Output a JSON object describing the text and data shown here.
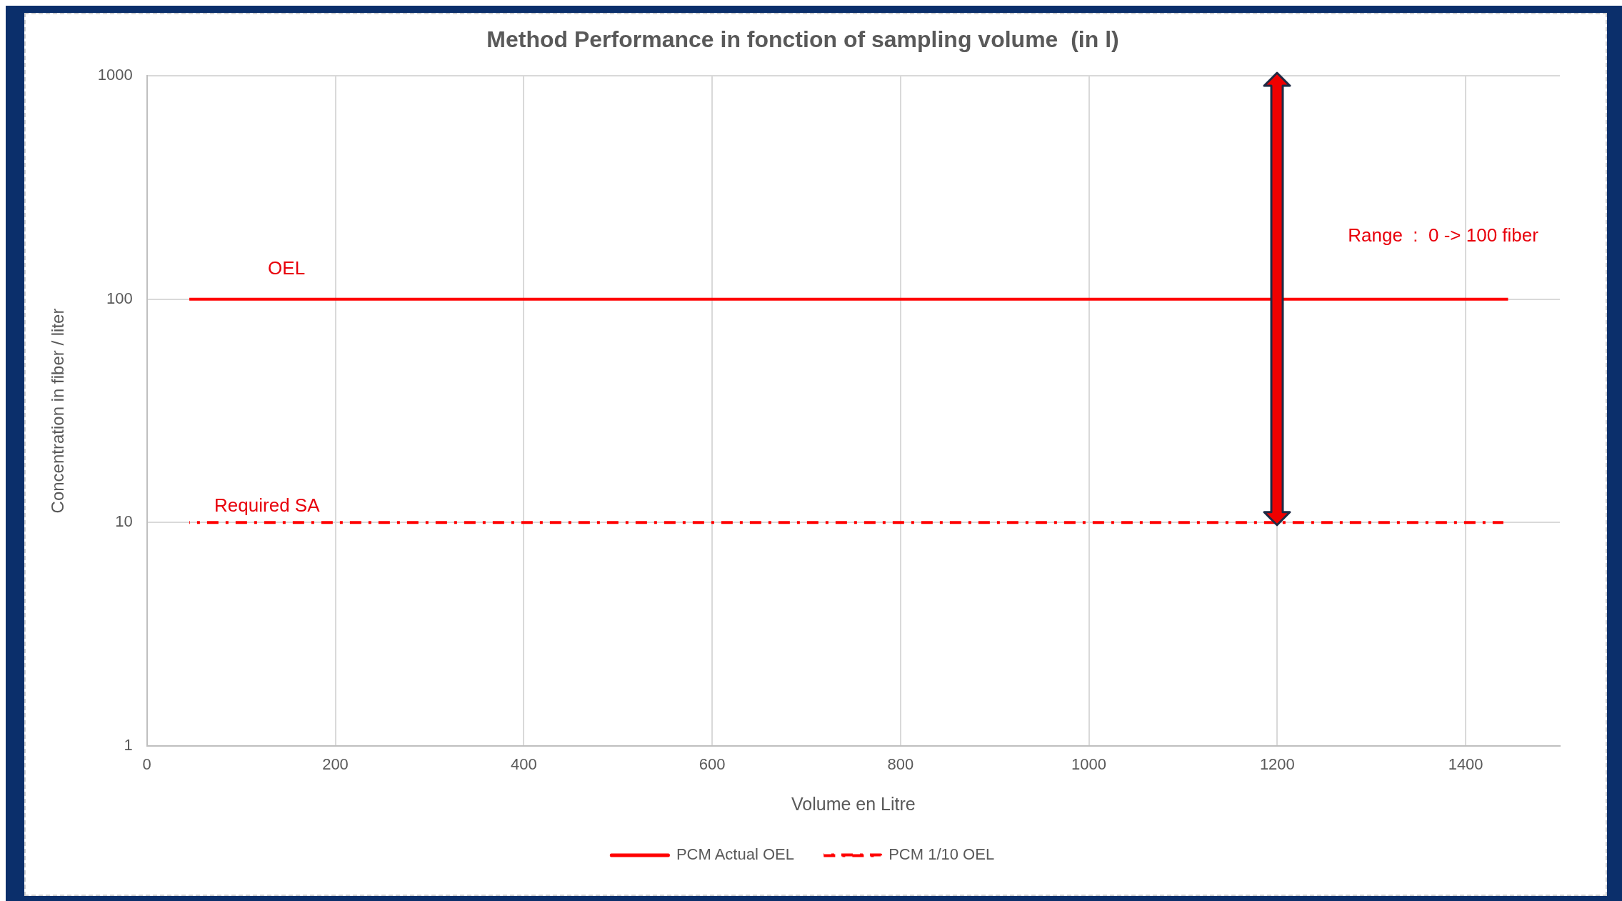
{
  "chart_data": {
    "type": "line",
    "title": "Method Performance in fonction of sampling volume  (in l)",
    "xlabel": "Volume en Litre",
    "ylabel": "Concentration in fiber / liter",
    "xlim": [
      0,
      1500
    ],
    "xticks": [
      0,
      200,
      400,
      600,
      800,
      1000,
      1200,
      1400
    ],
    "ylim": [
      1,
      1000
    ],
    "yticks": [
      1,
      10,
      100,
      1000
    ],
    "log": "y",
    "grid": true,
    "legend": "bottom",
    "marker": "none",
    "series": [
      {
        "name": "PCM Actual OEL",
        "color": "#ff0000",
        "x": [
          45,
          1445
        ],
        "values": [
          100,
          100
        ],
        "line_style": "solid"
      },
      {
        "name": "PCM 1/10 OEL",
        "color": "#ff0000",
        "x": [
          45,
          1440
        ],
        "values": [
          10,
          10
        ],
        "line_style": "dashdot"
      }
    ],
    "annotations": [
      "OEL",
      "Required SA",
      "Range  :  0 -> 100 fiber"
    ]
  }
}
